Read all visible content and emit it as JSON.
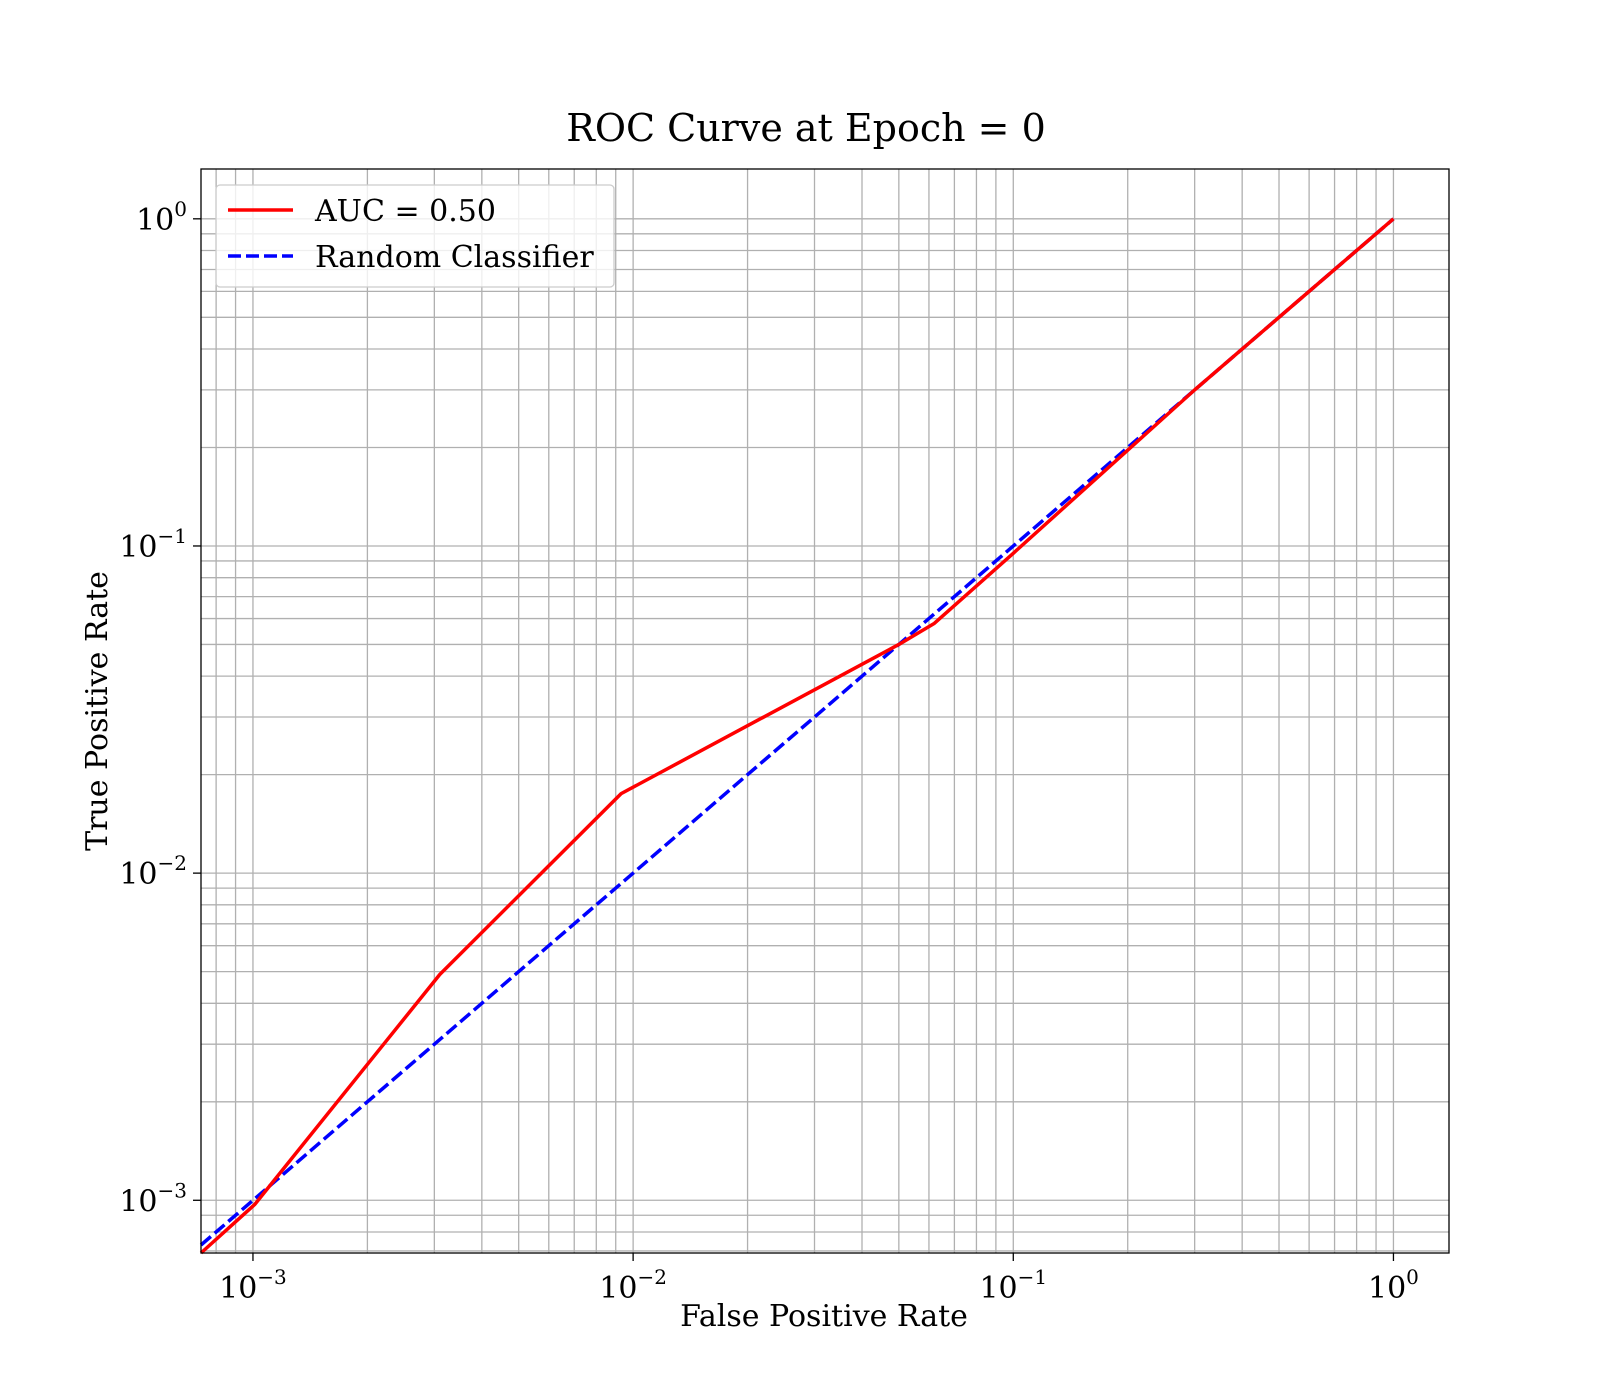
{
  "chart_data": {
    "type": "line",
    "title": "ROC Curve at Epoch = 0",
    "xlabel": "False Positive Rate",
    "ylabel": "True Positive Rate",
    "xscale": "log",
    "yscale": "log",
    "xlim": [
      0.00073,
      1.4
    ],
    "ylim": [
      0.00069,
      1.42
    ],
    "grid": true,
    "grid_which": "both",
    "legend_position": "top-left",
    "x_ticks": [
      {
        "base": "10",
        "exp": "−3",
        "value": 0.001
      },
      {
        "base": "10",
        "exp": "−2",
        "value": 0.01
      },
      {
        "base": "10",
        "exp": "−1",
        "value": 0.1
      },
      {
        "base": "10",
        "exp": "0",
        "value": 1
      }
    ],
    "y_ticks": [
      {
        "base": "10",
        "exp": "−3",
        "value": 0.001
      },
      {
        "base": "10",
        "exp": "−2",
        "value": 0.01
      },
      {
        "base": "10",
        "exp": "−1",
        "value": 0.1
      },
      {
        "base": "10",
        "exp": "0",
        "value": 1
      }
    ],
    "series": [
      {
        "name": "AUC = 0.50",
        "color": "#ff0000",
        "style": "solid",
        "x": [
          0.00073,
          0.00101,
          0.0031,
          0.0093,
          0.05,
          0.062,
          0.1,
          0.3,
          0.55,
          1.0
        ],
        "y": [
          0.00069,
          0.00097,
          0.0049,
          0.0175,
          0.05,
          0.058,
          0.095,
          0.3,
          0.55,
          1.0
        ]
      },
      {
        "name": "Random Classifier",
        "color": "#0000ff",
        "style": "dashed",
        "x": [
          0.00073,
          1.0
        ],
        "y": [
          0.00073,
          1.0
        ]
      }
    ]
  }
}
